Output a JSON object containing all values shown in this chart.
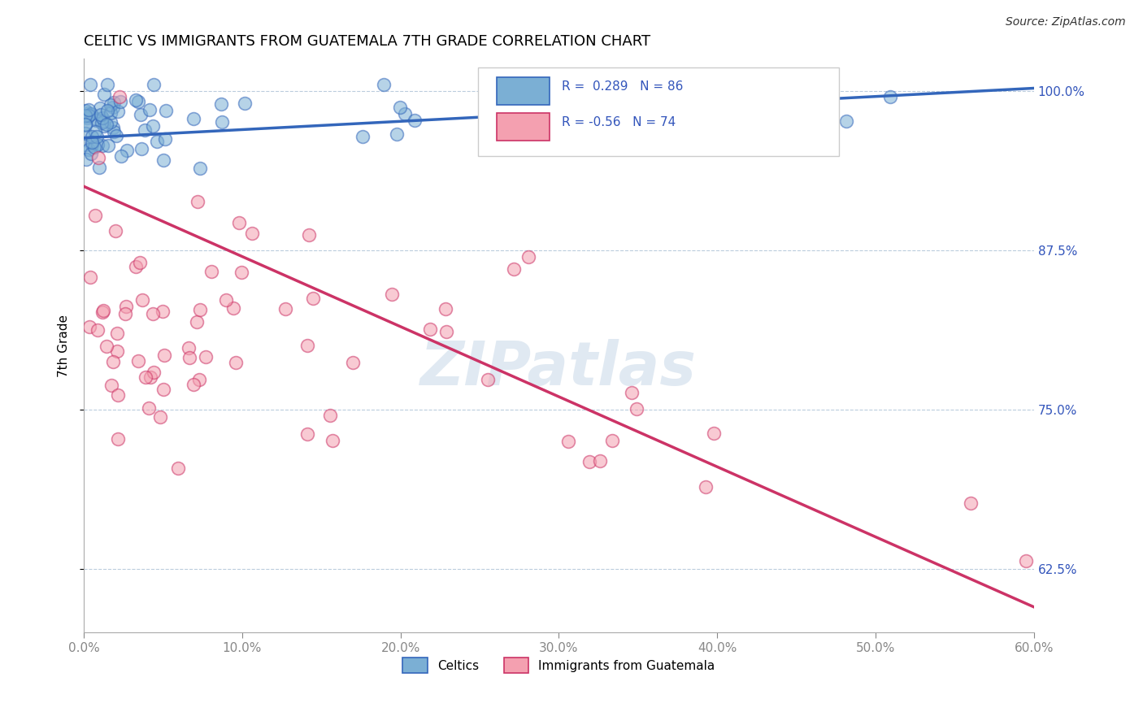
{
  "title": "CELTIC VS IMMIGRANTS FROM GUATEMALA 7TH GRADE CORRELATION CHART",
  "source": "Source: ZipAtlas.com",
  "ylabel": "7th Grade",
  "xmin": 0.0,
  "xmax": 0.6,
  "ymin": 0.575,
  "ymax": 1.025,
  "legend_blue_label": "Celtics",
  "legend_pink_label": "Immigrants from Guatemala",
  "r_blue": 0.289,
  "n_blue": 86,
  "r_pink": -0.56,
  "n_pink": 74,
  "blue_color": "#7BAFD4",
  "pink_color": "#F4A0B0",
  "blue_line_color": "#3366BB",
  "pink_line_color": "#CC3366",
  "watermark": "ZIPatlas"
}
